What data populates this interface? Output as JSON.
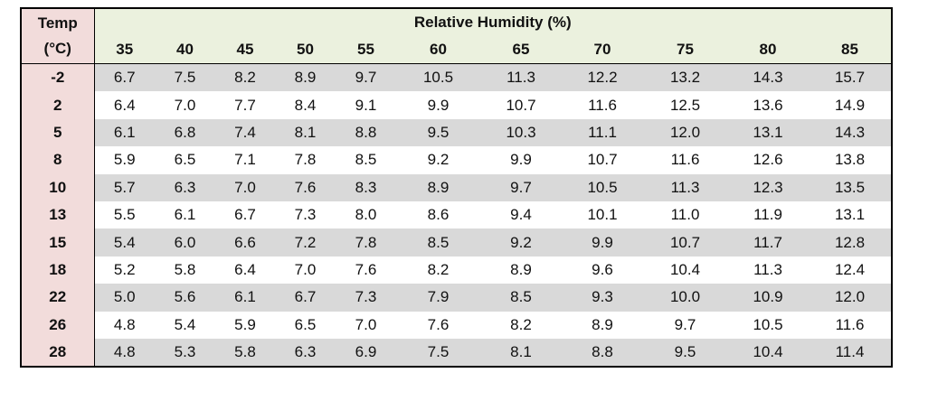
{
  "table": {
    "corner": [
      "Temp",
      "(°C)"
    ],
    "group_header": "Relative Humidity (%)",
    "columns": [
      "35",
      "40",
      "45",
      "50",
      "55",
      "60",
      "65",
      "70",
      "75",
      "80",
      "85"
    ],
    "rows": [
      [
        "-2",
        "6.7",
        "7.5",
        "8.2",
        "8.9",
        "9.7",
        "10.5",
        "11.3",
        "12.2",
        "13.2",
        "14.3",
        "15.7"
      ],
      [
        "2",
        "6.4",
        "7.0",
        "7.7",
        "8.4",
        "9.1",
        "9.9",
        "10.7",
        "11.6",
        "12.5",
        "13.6",
        "14.9"
      ],
      [
        "5",
        "6.1",
        "6.8",
        "7.4",
        "8.1",
        "8.8",
        "9.5",
        "10.3",
        "11.1",
        "12.0",
        "13.1",
        "14.3"
      ],
      [
        "8",
        "5.9",
        "6.5",
        "7.1",
        "7.8",
        "8.5",
        "9.2",
        "9.9",
        "10.7",
        "11.6",
        "12.6",
        "13.8"
      ],
      [
        "10",
        "5.7",
        "6.3",
        "7.0",
        "7.6",
        "8.3",
        "8.9",
        "9.7",
        "10.5",
        "11.3",
        "12.3",
        "13.5"
      ],
      [
        "13",
        "5.5",
        "6.1",
        "6.7",
        "7.3",
        "8.0",
        "8.6",
        "9.4",
        "10.1",
        "11.0",
        "11.9",
        "13.1"
      ],
      [
        "15",
        "5.4",
        "6.0",
        "6.6",
        "7.2",
        "7.8",
        "8.5",
        "9.2",
        "9.9",
        "10.7",
        "11.7",
        "12.8"
      ],
      [
        "18",
        "5.2",
        "5.8",
        "6.4",
        "7.0",
        "7.6",
        "8.2",
        "8.9",
        "9.6",
        "10.4",
        "11.3",
        "12.4"
      ],
      [
        "22",
        "5.0",
        "5.6",
        "6.1",
        "6.7",
        "7.3",
        "7.9",
        "8.5",
        "9.3",
        "10.0",
        "10.9",
        "12.0"
      ],
      [
        "26",
        "4.8",
        "5.4",
        "5.9",
        "6.5",
        "7.0",
        "7.6",
        "8.2",
        "8.9",
        "9.7",
        "10.5",
        "11.6"
      ],
      [
        "28",
        "4.8",
        "5.3",
        "5.8",
        "6.3",
        "6.9",
        "7.5",
        "8.1",
        "8.8",
        "9.5",
        "10.4",
        "11.4"
      ]
    ]
  }
}
